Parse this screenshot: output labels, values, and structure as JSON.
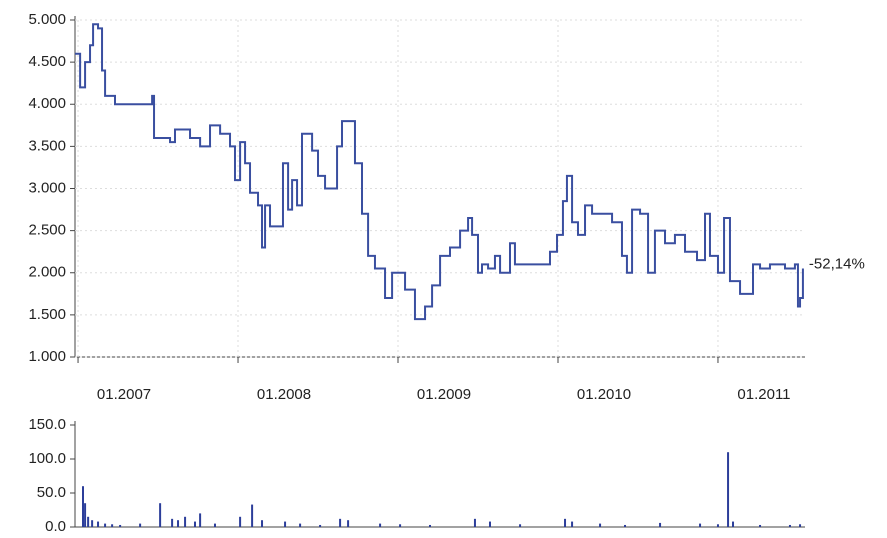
{
  "chart_data": [
    {
      "type": "line",
      "step": true,
      "color": "#3a4fa0",
      "grid": true,
      "annotation": "-52,14%",
      "xlim": [
        2006.981,
        2011.544
      ],
      "ylim": [
        1000,
        5000
      ],
      "xticks": [
        {
          "value": 2007,
          "label": "01.2007"
        },
        {
          "value": 2008,
          "label": "01.2008"
        },
        {
          "value": 2009,
          "label": "01.2009"
        },
        {
          "value": 2010,
          "label": "01.2010"
        },
        {
          "value": 2011,
          "label": "01.2011"
        }
      ],
      "yticks": [
        {
          "value": 1000,
          "label": "1.000"
        },
        {
          "value": 1500,
          "label": "1.500"
        },
        {
          "value": 2000,
          "label": "2.000"
        },
        {
          "value": 2500,
          "label": "2.500"
        },
        {
          "value": 3000,
          "label": "3.000"
        },
        {
          "value": 3500,
          "label": "3.500"
        },
        {
          "value": 4000,
          "label": "4.000"
        },
        {
          "value": 4500,
          "label": "4.500"
        },
        {
          "value": 5000,
          "label": "5.000"
        }
      ],
      "x": [
        2006.981,
        2007.013,
        2007.044,
        2007.075,
        2007.094,
        2007.125,
        2007.15,
        2007.169,
        2007.231,
        2007.45,
        2007.463,
        2007.475,
        2007.575,
        2007.606,
        2007.7,
        2007.763,
        2007.825,
        2007.888,
        2007.95,
        2007.981,
        2008.013,
        2008.044,
        2008.075,
        2008.125,
        2008.15,
        2008.169,
        2008.2,
        2008.25,
        2008.281,
        2008.313,
        2008.338,
        2008.369,
        2008.4,
        2008.463,
        2008.5,
        2008.544,
        2008.594,
        2008.619,
        2008.65,
        2008.7,
        2008.731,
        2008.775,
        2008.813,
        2008.856,
        2008.919,
        2008.963,
        2009.044,
        2009.106,
        2009.169,
        2009.213,
        2009.263,
        2009.325,
        2009.388,
        2009.438,
        2009.463,
        2009.5,
        2009.525,
        2009.563,
        2009.606,
        2009.638,
        2009.7,
        2009.731,
        2009.794,
        2009.919,
        2009.95,
        2009.994,
        2010.031,
        2010.056,
        2010.088,
        2010.125,
        2010.169,
        2010.213,
        2010.263,
        2010.338,
        2010.4,
        2010.431,
        2010.463,
        2010.513,
        2010.563,
        2010.606,
        2010.669,
        2010.731,
        2010.794,
        2010.869,
        2010.919,
        2010.95,
        2011.0,
        2011.038,
        2011.075,
        2011.138,
        2011.2,
        2011.219,
        2011.263,
        2011.325,
        2011.419,
        2011.481,
        2011.5,
        2011.513,
        2011.531
      ],
      "values": [
        4600,
        4200,
        4500,
        4700,
        4950,
        4900,
        4400,
        4100,
        4000,
        4000,
        4100,
        3600,
        3550,
        3700,
        3600,
        3500,
        3750,
        3650,
        3500,
        3100,
        3550,
        3300,
        2950,
        2800,
        2300,
        2800,
        2550,
        2550,
        3300,
        2750,
        3100,
        2800,
        3650,
        3450,
        3150,
        3000,
        3000,
        3500,
        3800,
        3800,
        3300,
        2700,
        2200,
        2050,
        1700,
        2000,
        1800,
        1450,
        1600,
        1850,
        2200,
        2300,
        2500,
        2650,
        2450,
        2000,
        2100,
        2050,
        2200,
        2000,
        2350,
        2100,
        2100,
        2100,
        2250,
        2450,
        2850,
        3150,
        2600,
        2450,
        2800,
        2700,
        2700,
        2600,
        2200,
        2000,
        2750,
        2700,
        2000,
        2500,
        2350,
        2450,
        2250,
        2150,
        2700,
        2200,
        2000,
        2650,
        1900,
        1750,
        1750,
        2100,
        2050,
        2100,
        2050,
        2100,
        1600,
        1700,
        2050
      ]
    },
    {
      "type": "bar",
      "color": "#2c3e9a",
      "xlim": [
        2006.981,
        2011.544
      ],
      "ylim": [
        0,
        150
      ],
      "yticks": [
        {
          "value": 0,
          "label": "0.0"
        },
        {
          "value": 50,
          "label": "50.0"
        },
        {
          "value": 100,
          "label": "100.0"
        },
        {
          "value": 150,
          "label": "150.0"
        }
      ],
      "x": [
        2007.031,
        2007.044,
        2007.063,
        2007.088,
        2007.125,
        2007.169,
        2007.213,
        2007.263,
        2007.388,
        2007.513,
        2007.588,
        2007.625,
        2007.669,
        2007.731,
        2007.763,
        2007.856,
        2008.013,
        2008.088,
        2008.15,
        2008.294,
        2008.388,
        2008.513,
        2008.638,
        2008.688,
        2008.888,
        2009.013,
        2009.2,
        2009.481,
        2009.575,
        2009.763,
        2010.044,
        2010.088,
        2010.263,
        2010.419,
        2010.638,
        2010.888,
        2011.0,
        2011.063,
        2011.094,
        2011.263,
        2011.45,
        2011.513
      ],
      "values": [
        60,
        35,
        15,
        10,
        8,
        5,
        4,
        3,
        5,
        35,
        12,
        10,
        15,
        8,
        20,
        5,
        15,
        33,
        10,
        8,
        5,
        3,
        12,
        10,
        5,
        4,
        3,
        12,
        8,
        4,
        12,
        8,
        5,
        3,
        6,
        5,
        4,
        110,
        8,
        3,
        3,
        4
      ]
    }
  ]
}
